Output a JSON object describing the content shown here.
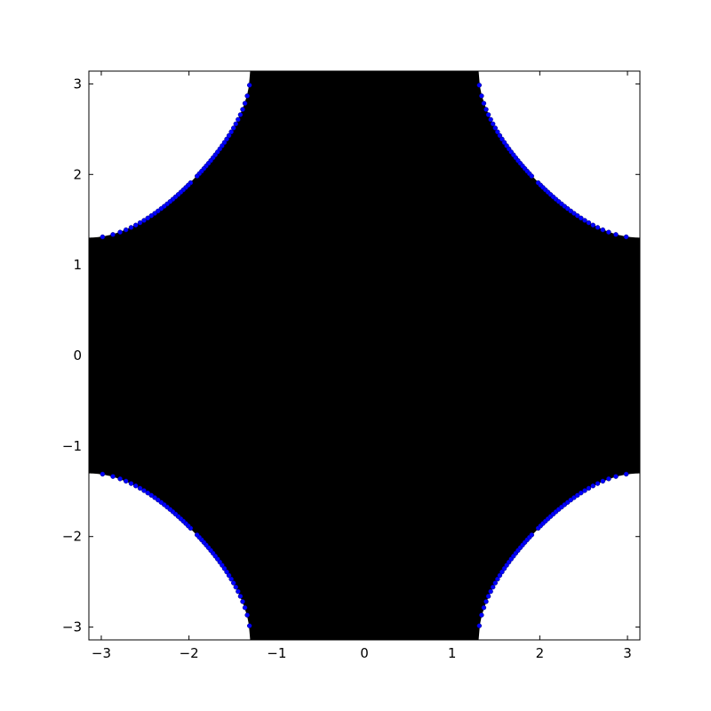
{
  "chart_data": {
    "type": "scatter",
    "title": "",
    "xlabel": "",
    "ylabel": "",
    "xlim": [
      -3.14159,
      3.14159
    ],
    "ylim": [
      -3.14159,
      3.14159
    ],
    "xticks": [
      -3,
      -2,
      -1,
      0,
      1,
      2,
      3
    ],
    "yticks": [
      -3,
      -2,
      -1,
      0,
      1,
      2,
      3
    ],
    "xtick_labels": [
      "−3",
      "−2",
      "−1",
      "0",
      "1",
      "2",
      "3"
    ],
    "ytick_labels": [
      "−3",
      "−2",
      "−1",
      "0",
      "1",
      "2",
      "3"
    ],
    "grid": false,
    "region": {
      "description_value": "filled region where cos(x) + cos(y) >= -0.73",
      "fill_color": "#000000",
      "threshold": -0.73
    },
    "boundary_curve": {
      "color": "#000000",
      "equation_value": "cos(x) + cos(y) = -0.73"
    },
    "series": [
      {
        "marker": "circle",
        "color": "#0000ff",
        "equation_value": "cos(x) + cos(y) = -0.73",
        "x_start": 1.31,
        "x_end": 3.14159,
        "points_per_branch": 48,
        "quadrant_signs": [
          [
            1,
            1
          ],
          [
            -1,
            1
          ],
          [
            1,
            -1
          ],
          [
            -1,
            -1
          ]
        ]
      }
    ]
  }
}
